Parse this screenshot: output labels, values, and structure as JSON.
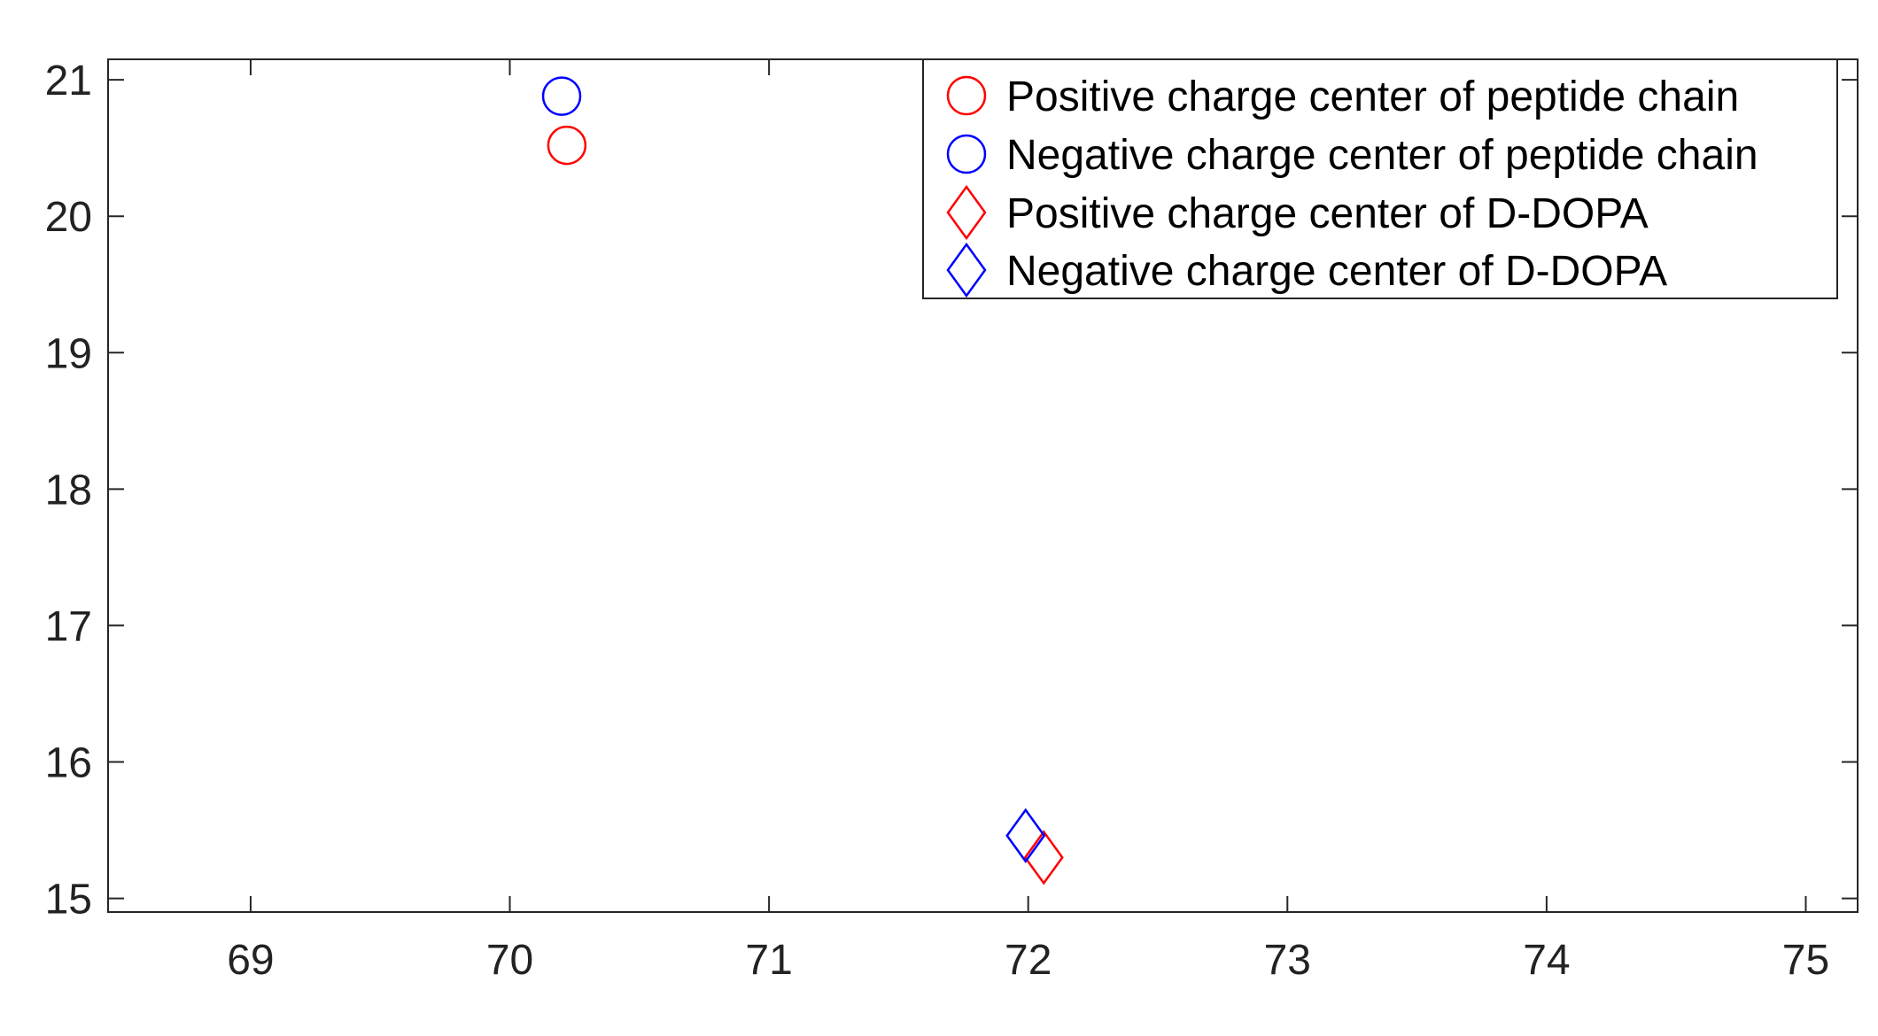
{
  "chart_data": {
    "type": "scatter",
    "title": "",
    "xlabel": "",
    "ylabel": "",
    "xlim": [
      68.45,
      75.2
    ],
    "ylim": [
      14.9,
      21.15
    ],
    "x_ticks": [
      69,
      70,
      71,
      72,
      73,
      74,
      75
    ],
    "y_ticks": [
      15,
      16,
      17,
      18,
      19,
      20,
      21
    ],
    "grid": false,
    "box": true,
    "legend_position": "top-right",
    "series": [
      {
        "name": "Positive charge center of peptide chain",
        "marker": "circle",
        "color": "#ff0000",
        "points": [
          {
            "x": 70.22,
            "y": 20.52
          }
        ]
      },
      {
        "name": "Negative charge center of peptide chain",
        "marker": "circle",
        "color": "#0000ff",
        "points": [
          {
            "x": 70.2,
            "y": 20.88
          }
        ]
      },
      {
        "name": "Positive charge center of D-DOPA",
        "marker": "diamond",
        "color": "#ff0000",
        "points": [
          {
            "x": 72.06,
            "y": 15.3
          }
        ]
      },
      {
        "name": "Negative charge center of D-DOPA",
        "marker": "diamond",
        "color": "#0000ff",
        "points": [
          {
            "x": 71.99,
            "y": 15.46
          }
        ]
      }
    ]
  }
}
